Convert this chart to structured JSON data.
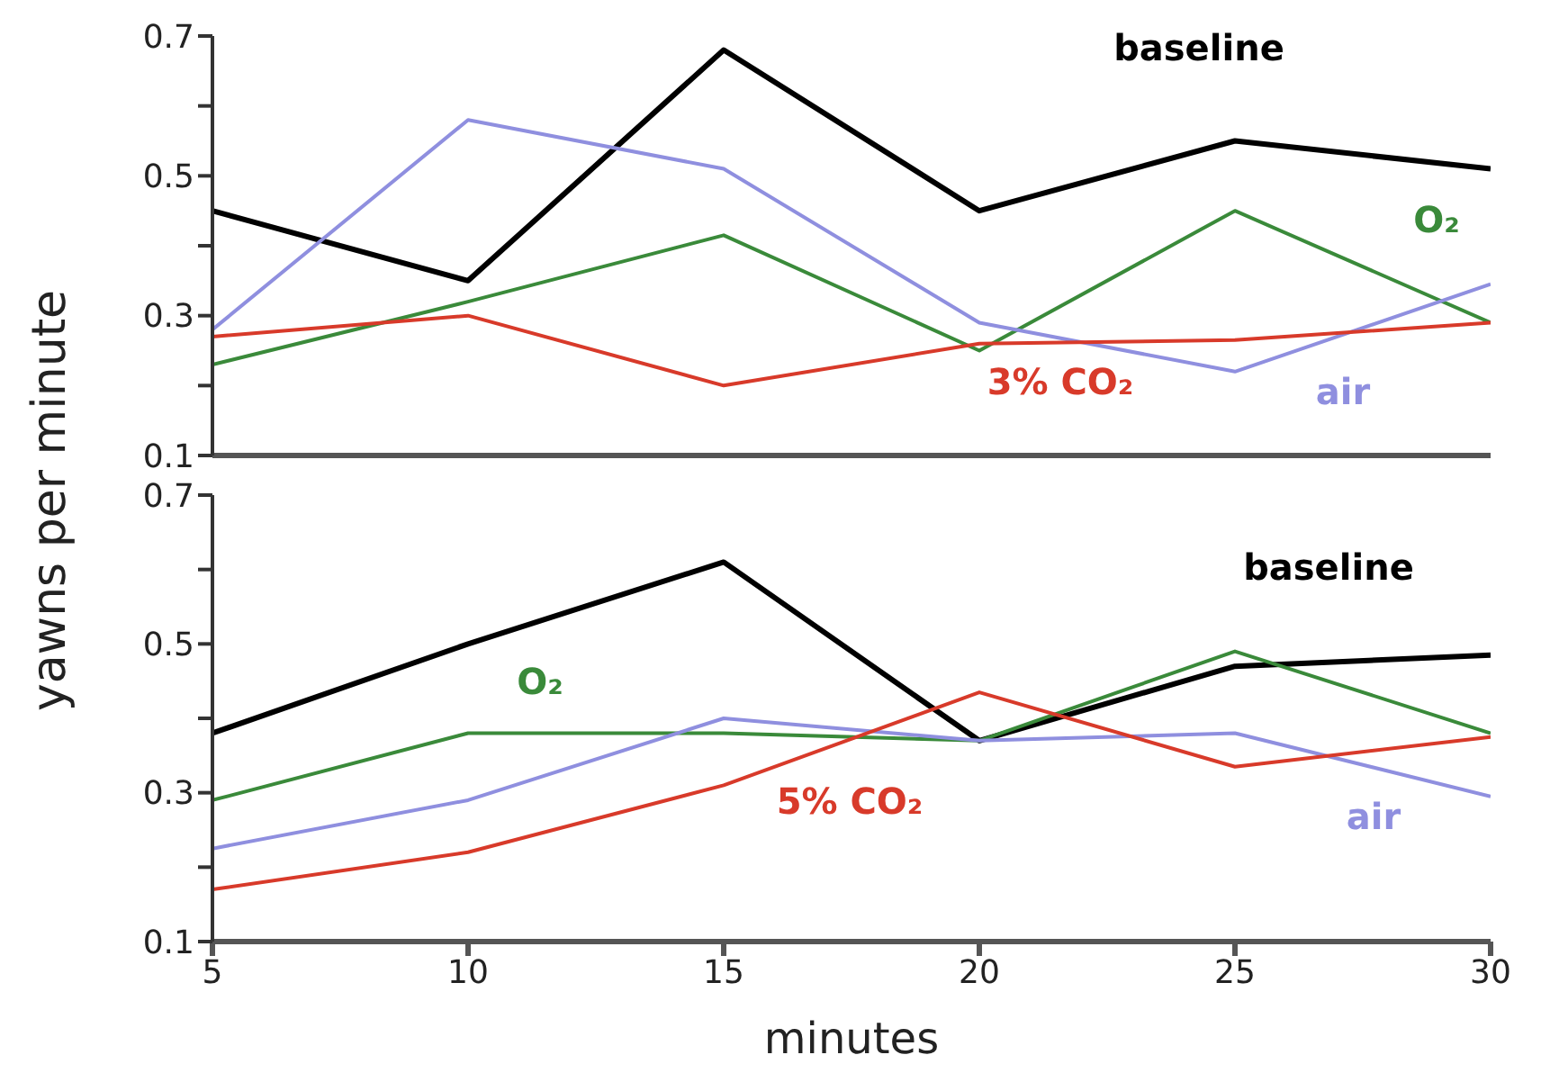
{
  "chart_data": [
    {
      "type": "line",
      "ylabel": "yawns per minute",
      "x": [
        5,
        10,
        15,
        20,
        25,
        30
      ],
      "xlim": [
        5,
        30
      ],
      "xticks": [
        5,
        10,
        15,
        20,
        25,
        30
      ],
      "ylim": [
        0.1,
        0.7
      ],
      "yticks": [
        0.1,
        {
          "value": 0.2,
          "label": null
        },
        0.3,
        {
          "value": 0.4,
          "label": null
        },
        0.5,
        {
          "value": 0.6,
          "label": null
        },
        0.7
      ],
      "tick_labels": "y",
      "grid": false,
      "legend": false,
      "marker": "none",
      "series": [
        {
          "name": "baseline",
          "color": "#000000",
          "values": [
            0.45,
            0.35,
            0.68,
            0.45,
            0.55,
            0.51
          ]
        },
        {
          "name": "O₂",
          "color": "#3a8a3a",
          "values": [
            0.23,
            0.32,
            0.415,
            0.25,
            0.45,
            0.29
          ]
        },
        {
          "name": "air",
          "color": "#8f8fdf",
          "values": [
            0.28,
            0.58,
            0.51,
            0.29,
            0.22,
            0.345
          ]
        },
        {
          "name": "3% CO₂",
          "color": "#d83a2a",
          "values": [
            0.27,
            0.3,
            0.2,
            0.26,
            0.265,
            0.29
          ]
        }
      ]
    },
    {
      "type": "line",
      "xlabel": "minutes",
      "x": [
        5,
        10,
        15,
        20,
        25,
        30
      ],
      "xlim": [
        5,
        30
      ],
      "xticks": [
        5,
        10,
        15,
        20,
        25,
        30
      ],
      "ylim": [
        0.1,
        0.7
      ],
      "yticks": [
        0.1,
        {
          "value": 0.2,
          "label": null
        },
        0.3,
        {
          "value": 0.4,
          "label": null
        },
        0.5,
        {
          "value": 0.6,
          "label": null
        },
        0.7
      ],
      "grid": false,
      "legend": false,
      "marker": "none",
      "series": [
        {
          "name": "baseline",
          "color": "#000000",
          "values": [
            0.38,
            0.5,
            0.61,
            0.37,
            0.47,
            0.485
          ]
        },
        {
          "name": "O₂",
          "color": "#3a8a3a",
          "values": [
            0.29,
            0.38,
            0.38,
            0.37,
            0.49,
            0.38
          ]
        },
        {
          "name": "air",
          "color": "#8f8fdf",
          "values": [
            0.225,
            0.29,
            0.4,
            0.37,
            0.38,
            0.295
          ]
        },
        {
          "name": "5% CO₂",
          "color": "#d83a2a",
          "values": [
            0.17,
            0.22,
            0.31,
            0.435,
            0.335,
            0.375
          ]
        }
      ]
    }
  ]
}
